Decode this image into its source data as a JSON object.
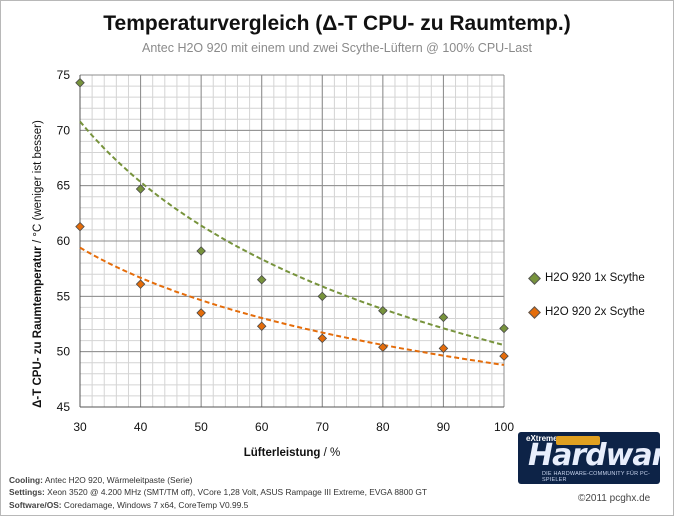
{
  "chart_data": {
    "type": "scatter",
    "title": "Temperaturvergleich (Δ-T CPU- zu Raumtemp.)",
    "subtitle": "Antec H2O 920 mit einem und zwei Scythe-Lüftern @ 100% CPU-Last",
    "ylabel_bold": "Δ-T CPU- zu Raumtemperatur",
    "ylabel_rest": "/ °C (weniger ist besser)",
    "xlabel_bold": "Lüfterleistung",
    "xlabel_rest": "/ %",
    "xlim": [
      30,
      100
    ],
    "ylim": [
      45,
      75
    ],
    "xticks": [
      30,
      40,
      50,
      60,
      70,
      80,
      90,
      100
    ],
    "yticks": [
      45,
      50,
      55,
      60,
      65,
      70,
      75
    ],
    "grid": true,
    "legend_position": "right",
    "series": [
      {
        "name": "H2O 920 1x Scythe",
        "color": "#77933c",
        "x": [
          30,
          40,
          50,
          60,
          70,
          80,
          90,
          100
        ],
        "y": [
          74.3,
          64.7,
          59.1,
          56.5,
          55.0,
          53.7,
          53.1,
          52.1
        ],
        "trendline": {
          "type": "power",
          "y_start": 70.8,
          "y_end": 50.6
        }
      },
      {
        "name": "H2O 920 2x Scythe",
        "color": "#e46c0a",
        "x": [
          30,
          40,
          50,
          60,
          70,
          80,
          90,
          100
        ],
        "y": [
          61.3,
          56.1,
          53.5,
          52.3,
          51.2,
          50.4,
          50.3,
          49.6
        ],
        "trendline": {
          "type": "power",
          "y_start": 59.4,
          "y_end": 48.8
        }
      }
    ]
  },
  "footer": {
    "cooling_key": "Cooling:",
    "cooling_val": "Antec H2O 920, Wärmeleitpaste (Serie)",
    "settings_key": "Settings:",
    "settings_val": "Xeon 3520 @ 4.200 MHz (SMT/TM off), VCore 1,28 Volt, ASUS Rampage III Extreme, EVGA 8800 GT",
    "software_key": "Software/OS:",
    "software_val": "Coredamage, Windows 7 x64, CoreTemp V0.99.5"
  },
  "credit": "©2011 pcghx.de",
  "logo": {
    "brand": "Hardware",
    "prefix": "eXtreme",
    "tagline": "DIE HARDWARE-COMMUNITY FÜR PC-SPIELER"
  }
}
